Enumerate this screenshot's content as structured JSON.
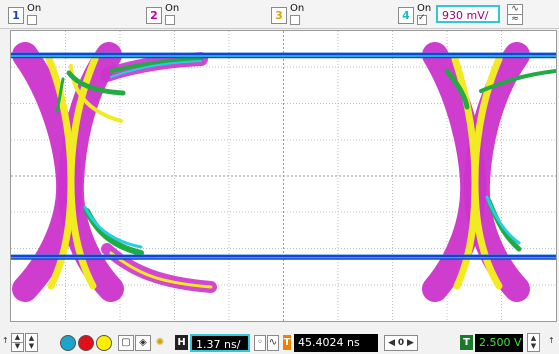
{
  "channels": [
    {
      "number": "1",
      "state": "On",
      "color": "#1f3fd0",
      "checked": false
    },
    {
      "number": "2",
      "state": "On",
      "color": "#c300a6",
      "checked": false
    },
    {
      "number": "3",
      "state": "On",
      "color": "#e0a300",
      "checked": false
    },
    {
      "number": "4",
      "state": "On",
      "color": "#1fb8c8",
      "checked": true
    }
  ],
  "channel4_scale": "930 mV/",
  "timebase": {
    "label": "H",
    "value": "1.37 ns/"
  },
  "delay": {
    "label": "T",
    "value": "45.4024 ns"
  },
  "nav": {
    "prev": "◀",
    "value": "0",
    "next": "▶"
  },
  "trigger": {
    "label": "T",
    "level": "2.500 V"
  },
  "toolbar_labels": {
    "left_marker": "↑",
    "right_marker": "↑"
  },
  "colors": {
    "trace_magenta": "#cc33cc",
    "trace_yellow": "#f2ea22",
    "trace_green": "#22aa44",
    "trace_cyan": "#22d0e0",
    "trace_blue": "#1e3ed8",
    "grid": "#bfbfbf",
    "accent_cyan": "#2ec8d8"
  },
  "icons": [
    "dot-blue-icon",
    "dot-red-icon",
    "dot-yellow-icon",
    "display-icon",
    "layers-icon",
    "brightness-icon",
    "wave-ac-icon",
    "wave-dc-icon"
  ]
}
